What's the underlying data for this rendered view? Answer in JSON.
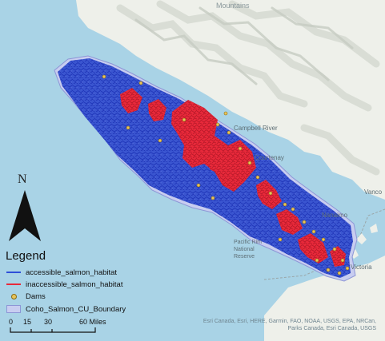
{
  "map": {
    "north_label": "N",
    "colors": {
      "water": "#a9d3e6",
      "land": "#eef0ea",
      "terrain_shade": "#d8ddd3",
      "accessible": "#2e4fd8",
      "inaccessible": "#e8293a",
      "dam_fill": "#e8c45a",
      "boundary_fill": "#c8cdf0"
    },
    "place_labels": [
      {
        "name": "campbell-river",
        "text": "Campbell River"
      },
      {
        "name": "courtenay",
        "text": "Courtenay"
      },
      {
        "name": "nanaimo",
        "text": "Nanaimo"
      },
      {
        "name": "vancouver",
        "text": "Vanco"
      },
      {
        "name": "pacific-rim",
        "text": "Pacific Rim"
      },
      {
        "name": "national",
        "text": "National"
      },
      {
        "name": "reserve",
        "text": "Reserve"
      },
      {
        "name": "victoria",
        "text": "Victoria"
      },
      {
        "name": "mountains",
        "text": "Mountains"
      }
    ]
  },
  "legend": {
    "title": "Legend",
    "items": [
      {
        "label": "accessible_salmon_habitat",
        "symbol": "line",
        "color": "#2e4fd8"
      },
      {
        "label": "inaccessible_salmon_habitat",
        "symbol": "line",
        "color": "#e8293a"
      },
      {
        "label": "Dams",
        "symbol": "circle",
        "color": "#e8c45a"
      },
      {
        "label": "Coho_Salmon_CU_Boundary",
        "symbol": "box",
        "color": "#c8cdf0"
      }
    ]
  },
  "scale": {
    "ticks": [
      "0",
      "15",
      "30",
      "60 Miles"
    ]
  },
  "attribution": {
    "line1": "Esri Canada, Esri, HERE, Garmin, FAO, NOAA, USGS, EPA, NRCan,",
    "line2": "Parks Canada, Esri Canada, USGS"
  }
}
